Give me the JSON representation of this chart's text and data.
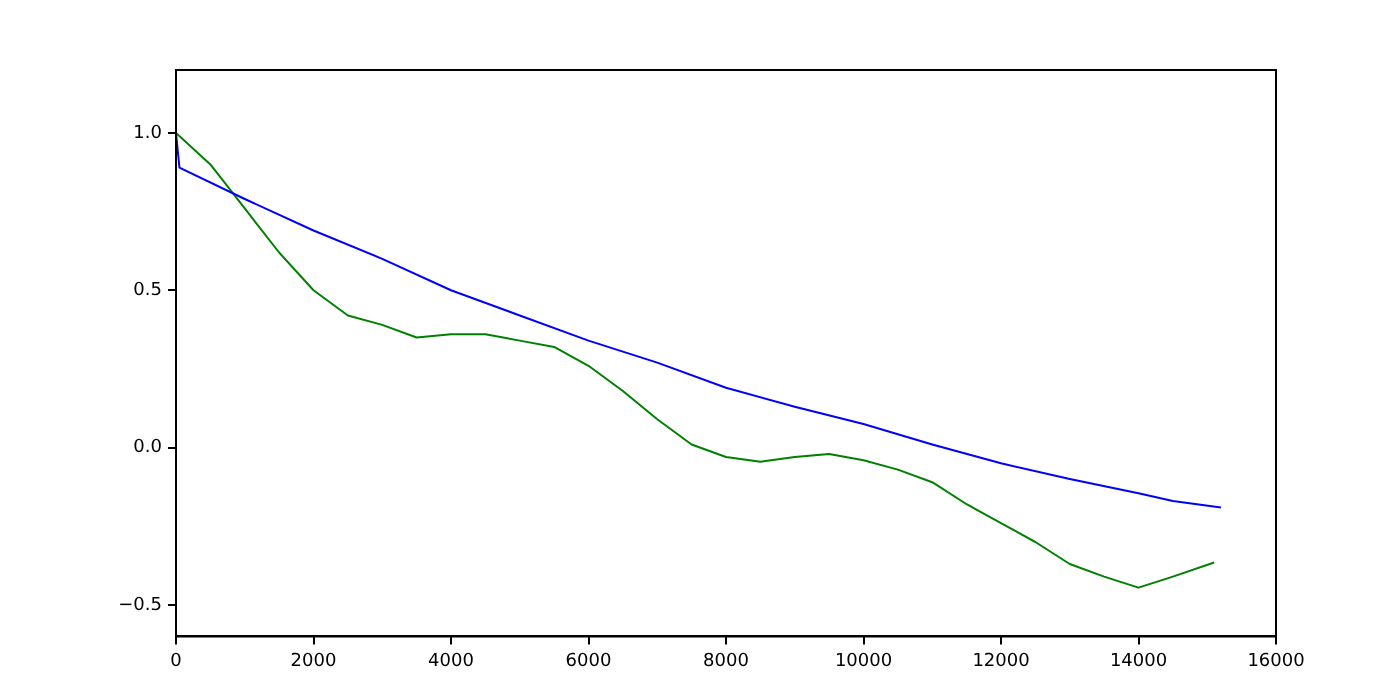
{
  "chart_data": {
    "type": "line",
    "xlim": [
      0,
      16000
    ],
    "ylim": [
      -0.6,
      1.2
    ],
    "xticks": [
      0,
      2000,
      4000,
      6000,
      8000,
      10000,
      12000,
      14000,
      16000
    ],
    "yticks": [
      -0.5,
      {
        "value": 0,
        "label": "0.0"
      },
      0.5,
      {
        "value": 1,
        "label": "1.0"
      }
    ],
    "grid": false,
    "legend": false,
    "marker": "none",
    "line_style": "solid",
    "series": [
      {
        "color": "#0000ff",
        "x": [
          0,
          50,
          1000,
          2000,
          3000,
          4000,
          5000,
          6000,
          7000,
          8000,
          9000,
          10000,
          11000,
          12000,
          13000,
          14000,
          14500,
          15200
        ],
        "values": [
          1.0,
          0.89,
          0.79,
          0.69,
          0.6,
          0.5,
          0.42,
          0.34,
          0.27,
          0.19,
          0.13,
          0.075,
          0.01,
          -0.05,
          -0.1,
          -0.145,
          -0.17,
          -0.19
        ]
      },
      {
        "color": "#008000",
        "x": [
          0,
          500,
          1000,
          1500,
          2000,
          2500,
          3000,
          3500,
          4000,
          4500,
          5000,
          5500,
          6000,
          6500,
          7000,
          7500,
          8000,
          8500,
          9000,
          9500,
          10000,
          10500,
          11000,
          11500,
          12000,
          12500,
          13000,
          13500,
          14000,
          14500,
          15100
        ],
        "values": [
          1.0,
          0.9,
          0.76,
          0.62,
          0.5,
          0.42,
          0.39,
          0.35,
          0.36,
          0.36,
          0.34,
          0.32,
          0.26,
          0.18,
          0.09,
          0.01,
          -0.03,
          -0.045,
          -0.03,
          -0.02,
          -0.04,
          -0.07,
          -0.11,
          -0.18,
          -0.24,
          -0.3,
          -0.37,
          -0.41,
          -0.445,
          -0.41,
          -0.365
        ]
      }
    ]
  }
}
